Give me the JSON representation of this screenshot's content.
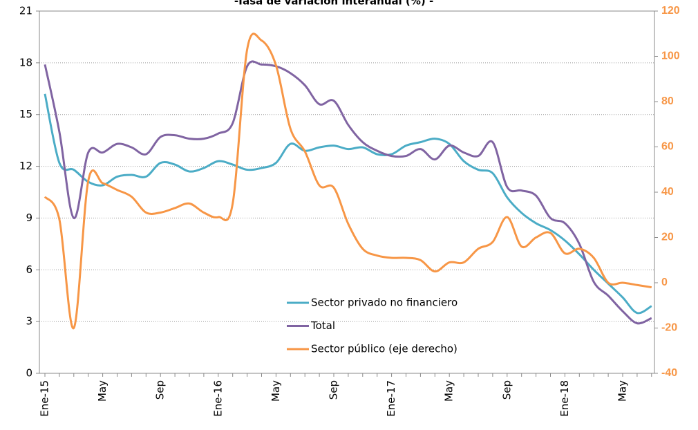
{
  "chart_data": {
    "type": "line",
    "title": "-Tasa de variación interanual (%) -",
    "categories": [
      "Ene-15",
      null,
      null,
      null,
      "May",
      null,
      null,
      null,
      "Sep",
      null,
      null,
      null,
      "Ene-16",
      null,
      null,
      null,
      "May",
      null,
      null,
      null,
      "Sep",
      null,
      null,
      null,
      "Ene-17",
      null,
      null,
      null,
      "May",
      null,
      null,
      null,
      "Sep",
      null,
      null,
      null,
      "Ene-18",
      null,
      null,
      null,
      "May",
      null,
      null
    ],
    "series": [
      {
        "name": "Sector privado no financiero",
        "color": "#4bacc6",
        "values": [
          16.2,
          12.2,
          11.8,
          11.1,
          10.9,
          11.4,
          11.5,
          11.4,
          12.2,
          12.1,
          11.7,
          11.9,
          12.3,
          12.1,
          11.8,
          11.9,
          12.2,
          13.3,
          12.9,
          13.1,
          13.2,
          13.0,
          13.1,
          12.7,
          12.7,
          13.2,
          13.4,
          13.6,
          13.3,
          12.3,
          11.8,
          11.6,
          10.2,
          9.3,
          8.7,
          8.3,
          7.7,
          6.9,
          6.0,
          5.2,
          4.4,
          3.5,
          3.9
        ]
      },
      {
        "name": "Total",
        "color": "#8064a2",
        "values": [
          17.9,
          14.0,
          9.0,
          12.8,
          12.8,
          13.3,
          13.1,
          12.7,
          13.7,
          13.8,
          13.6,
          13.6,
          13.9,
          14.5,
          17.8,
          17.9,
          17.8,
          17.4,
          16.7,
          15.6,
          15.8,
          14.4,
          13.4,
          12.9,
          12.6,
          12.6,
          13.0,
          12.4,
          13.2,
          12.8,
          12.6,
          13.4,
          10.8,
          10.6,
          10.3,
          9.0,
          8.7,
          7.5,
          5.3,
          4.5,
          3.6,
          2.9,
          3.2
        ]
      },
      {
        "name": "Sector público (eje derecho)",
        "color": "#f79646",
        "axis": "y2",
        "values": [
          38,
          28,
          -20,
          45,
          44,
          41,
          38,
          31,
          31,
          33,
          35,
          31,
          29,
          35,
          103,
          107,
          96,
          68,
          58,
          43,
          42,
          26,
          15,
          12,
          11,
          11,
          10,
          5,
          9,
          9,
          15,
          18,
          29,
          16,
          20,
          22,
          13,
          15,
          11,
          0,
          0,
          -1,
          -2
        ]
      }
    ],
    "ylim": [
      0,
      21
    ],
    "yticks": [
      0,
      3,
      6,
      9,
      12,
      15,
      18,
      21
    ],
    "y2lim": [
      -40,
      120
    ],
    "y2ticks": [
      -40,
      -20,
      0,
      20,
      40,
      60,
      80,
      100,
      120
    ],
    "grid": true,
    "legend": "bottom"
  }
}
